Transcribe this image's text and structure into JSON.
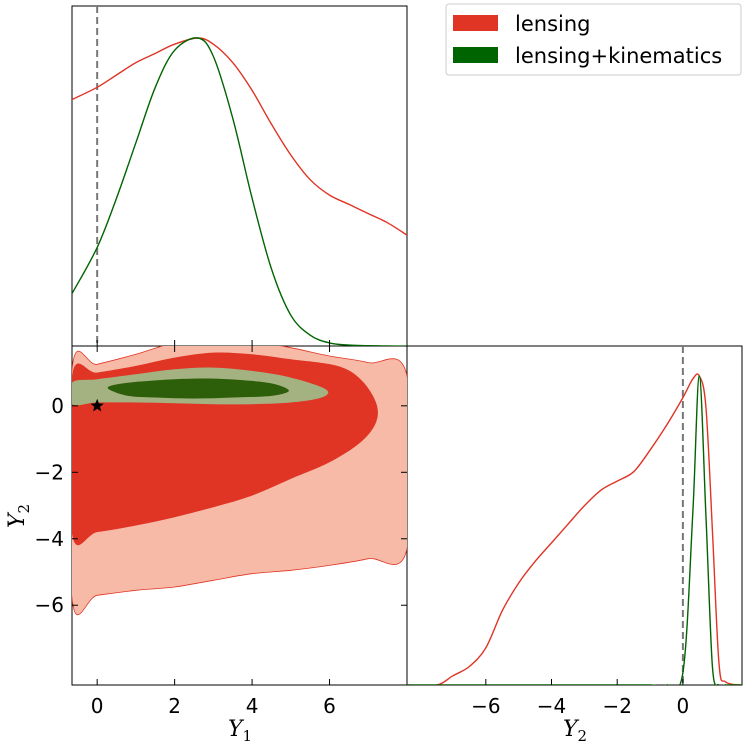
{
  "chart_data": {
    "type": "corner_plot",
    "legend": {
      "placement": "top-right",
      "entries": [
        {
          "label": "lensing",
          "color": "#e03424"
        },
        {
          "label": "lensing+kinematics",
          "color": "#006400"
        }
      ]
    },
    "colors": {
      "lensing_line": "#e03424",
      "lensing_fill_inner": "#e03424",
      "lensing_fill_outer": "#f7baa6",
      "kinematics_line": "#006400",
      "kinematics_fill_inner": "#2d5e0a",
      "kinematics_fill_outer": "#a4b181",
      "truth_line": "#777777"
    },
    "truth": {
      "Y1": 0,
      "Y2": 0
    },
    "axes": {
      "Y1": {
        "label": "Y",
        "subscript": "1",
        "range": [
          -0.65,
          8.0
        ],
        "ticks": [
          0,
          2,
          4,
          6
        ],
        "tick_labels": [
          "0",
          "2",
          "4",
          "6"
        ]
      },
      "Y2": {
        "label": "Y",
        "subscript": "2",
        "range": [
          -8.4,
          1.8
        ],
        "ticks": [
          -6,
          -4,
          -2,
          0
        ],
        "tick_labels": [
          "−6",
          "−4",
          "−2",
          "0"
        ]
      }
    },
    "marginal_Y1": {
      "x": [
        -0.65,
        0,
        0.5,
        1,
        1.5,
        2,
        2.6,
        3,
        3.5,
        4,
        4.5,
        5,
        5.5,
        6,
        6.5,
        7,
        7.5,
        8
      ],
      "lensing": [
        0.8,
        0.84,
        0.88,
        0.92,
        0.95,
        0.98,
        1.0,
        0.98,
        0.92,
        0.83,
        0.72,
        0.62,
        0.54,
        0.49,
        0.46,
        0.43,
        0.4,
        0.36
      ],
      "lensing_kinematics": [
        0.17,
        0.32,
        0.48,
        0.66,
        0.84,
        0.96,
        1.0,
        0.94,
        0.74,
        0.48,
        0.25,
        0.1,
        0.035,
        0.01,
        0.003,
        0.001,
        0.0,
        0.0
      ]
    },
    "marginal_Y2": {
      "x": [
        -8.4,
        -7.5,
        -7,
        -6.5,
        -6,
        -5.5,
        -5,
        -4.5,
        -4,
        -3.5,
        -3,
        -2.5,
        -2,
        -1.5,
        -1,
        -0.5,
        0,
        0.3,
        0.5,
        0.7,
        0.9,
        1.1,
        1.3,
        1.8
      ],
      "lensing": [
        0.0,
        0.0,
        0.03,
        0.06,
        0.12,
        0.24,
        0.33,
        0.4,
        0.46,
        0.52,
        0.58,
        0.63,
        0.66,
        0.69,
        0.76,
        0.84,
        0.93,
        0.99,
        1.0,
        0.9,
        0.5,
        0.07,
        0.01,
        0.0
      ],
      "lensing_kinematics": [
        0.0,
        0.0,
        0.0,
        0.0,
        0.0,
        0.0,
        0.0,
        0.0,
        0.0,
        0.0,
        0.0,
        0.0,
        0.0,
        0.0,
        0.0,
        0.0,
        0.04,
        0.55,
        1.0,
        0.55,
        0.06,
        0.0,
        0.0,
        0.0
      ]
    },
    "joint_contours": {
      "lensing_outer": [
        [
          -0.65,
          -5.8
        ],
        [
          0,
          -5.7
        ],
        [
          1,
          -5.55
        ],
        [
          2,
          -5.45
        ],
        [
          3,
          -5.25
        ],
        [
          4,
          -5.05
        ],
        [
          5,
          -4.95
        ],
        [
          6,
          -4.8
        ],
        [
          7,
          -4.6
        ],
        [
          8,
          -4.3
        ],
        [
          8,
          0.9
        ],
        [
          7,
          1.3
        ],
        [
          6,
          1.5
        ],
        [
          5,
          1.75
        ],
        [
          4,
          1.95
        ],
        [
          3,
          2.05
        ],
        [
          2,
          1.9
        ],
        [
          1,
          1.55
        ],
        [
          0,
          1.25
        ],
        [
          -0.65,
          1.1
        ]
      ],
      "lensing_inner": [
        [
          -0.65,
          -3.85
        ],
        [
          0,
          -3.8
        ],
        [
          1,
          -3.6
        ],
        [
          2,
          -3.35
        ],
        [
          3,
          -3.05
        ],
        [
          4,
          -2.7
        ],
        [
          5,
          -2.2
        ],
        [
          6,
          -1.7
        ],
        [
          6.8,
          -1.1
        ],
        [
          7.2,
          -0.5
        ],
        [
          7.2,
          0.1
        ],
        [
          6.8,
          0.8
        ],
        [
          6.2,
          1.2
        ],
        [
          5,
          1.4
        ],
        [
          4,
          1.55
        ],
        [
          3,
          1.6
        ],
        [
          2,
          1.45
        ],
        [
          1,
          1.2
        ],
        [
          0,
          1.0
        ],
        [
          -0.65,
          0.9
        ]
      ],
      "kinematics_outer": [
        [
          -0.65,
          0.05
        ],
        [
          0,
          0.1
        ],
        [
          1,
          0.1
        ],
        [
          2,
          0.08
        ],
        [
          3,
          0.05
        ],
        [
          4,
          0.05
        ],
        [
          5,
          0.1
        ],
        [
          5.8,
          0.25
        ],
        [
          5.9,
          0.5
        ],
        [
          5.0,
          0.85
        ],
        [
          4,
          1.05
        ],
        [
          3,
          1.15
        ],
        [
          2,
          1.1
        ],
        [
          1,
          0.95
        ],
        [
          0,
          0.8
        ],
        [
          -0.65,
          0.7
        ]
      ],
      "kinematics_inner": [
        [
          0.3,
          0.5
        ],
        [
          0.8,
          0.3
        ],
        [
          1.5,
          0.25
        ],
        [
          2.5,
          0.22
        ],
        [
          3.5,
          0.25
        ],
        [
          4.5,
          0.3
        ],
        [
          4.95,
          0.45
        ],
        [
          4.6,
          0.65
        ],
        [
          4,
          0.75
        ],
        [
          3,
          0.82
        ],
        [
          2,
          0.8
        ],
        [
          1,
          0.72
        ],
        [
          0.4,
          0.62
        ]
      ]
    }
  }
}
